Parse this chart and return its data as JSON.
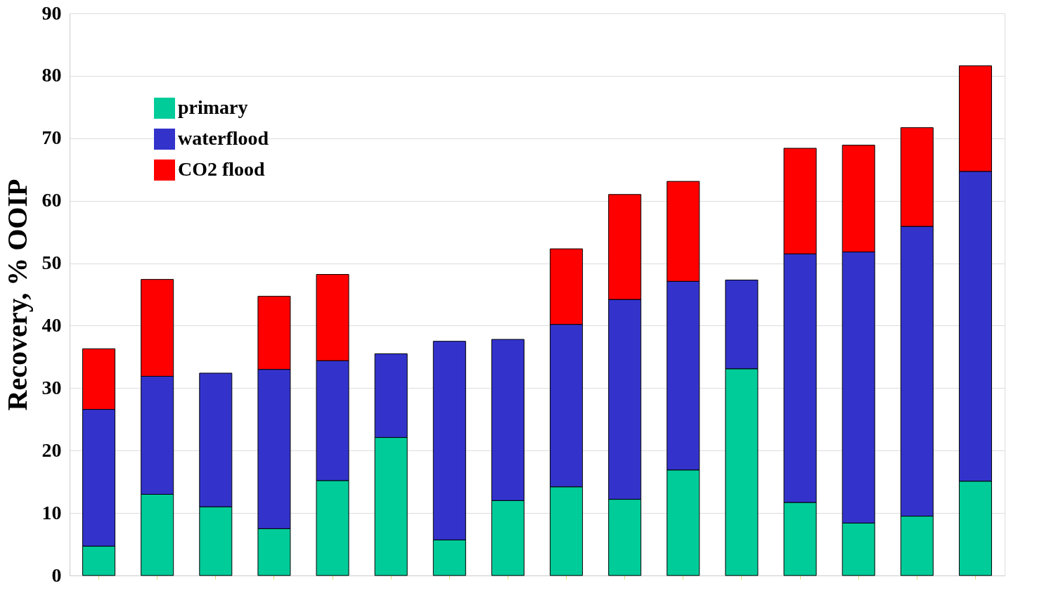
{
  "chart_data": {
    "type": "bar",
    "stacked": true,
    "ylabel": "Recovery, % OOIP",
    "categories": [
      null,
      null,
      null,
      null,
      null,
      null,
      null,
      null,
      null,
      null,
      null,
      null,
      null,
      null,
      null,
      null
    ],
    "series": [
      {
        "name": "primary",
        "color": "#00cc99",
        "values": [
          4.7,
          13.0,
          11.0,
          7.5,
          15.2,
          22.1,
          5.7,
          12.0,
          14.2,
          12.2,
          16.9,
          33.1,
          11.7,
          8.4,
          9.5,
          15.1
        ]
      },
      {
        "name": "waterflood",
        "color": "#3333cc",
        "values": [
          21.9,
          18.9,
          21.4,
          25.5,
          19.2,
          13.4,
          31.8,
          25.8,
          26.0,
          32.0,
          30.2,
          14.2,
          39.8,
          43.4,
          46.4,
          49.6
        ]
      },
      {
        "name": "CO2 flood",
        "color": "#ff0000",
        "values": [
          9.7,
          15.5,
          null,
          11.7,
          13.8,
          null,
          null,
          null,
          12.1,
          16.8,
          16.0,
          null,
          16.9,
          17.1,
          15.8,
          16.9
        ]
      }
    ],
    "ylim": [
      0,
      90
    ],
    "yticks": [
      0,
      10,
      20,
      30,
      40,
      50,
      60,
      70,
      80,
      90
    ],
    "grid": "y",
    "legend": "top left",
    "tick_labels": "y"
  }
}
